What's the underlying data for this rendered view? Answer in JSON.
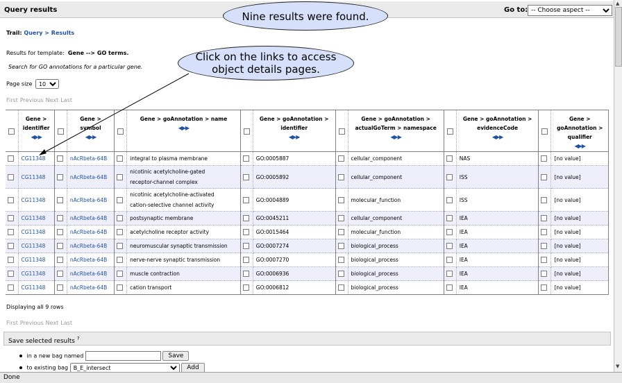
{
  "header": {
    "title": "Query results",
    "goto_label": "Go to:",
    "goto_selected": "-- Choose aspect --"
  },
  "annotations": {
    "bubble1": "Nine results were found.",
    "bubble2_line1": "Click on the links to access",
    "bubble2_line2": "object details pages."
  },
  "trail": {
    "label": "Trail:",
    "crumb1": "Query",
    "sep": ">",
    "crumb2": "Results"
  },
  "template": {
    "prefix": "Results for template:",
    "name": "Gene --> GO terms.",
    "description": "Search for GO annotations for a particular gene."
  },
  "page_size": {
    "label": "Page size",
    "value": "10"
  },
  "pager": {
    "first": "First",
    "previous": "Previous",
    "next": "Next",
    "last": "Last"
  },
  "columns": [
    {
      "line1": "Gene >",
      "line2": "identifier"
    },
    {
      "line1": "Gene >",
      "line2": "symbol"
    },
    {
      "line1": "Gene > goAnnotation > name",
      "line2": ""
    },
    {
      "line1": "Gene > goAnnotation >",
      "line2": "identifier"
    },
    {
      "line1": "Gene > goAnnotation >",
      "line2": "actualGoTerm > namespace"
    },
    {
      "line1": "Gene > goAnnotation >",
      "line2": "evidenceCode"
    },
    {
      "line1": "Gene >",
      "line2": "goAnnotation >",
      "line3": "qualifier"
    }
  ],
  "sort_glyphs": "◀▶▶",
  "rows": [
    {
      "id": "CG11348",
      "symbol": "nAcRbeta-64B",
      "name1": "integral to plasma membrane",
      "name2": "",
      "go": "GO:0005887",
      "ns": "cellular_component",
      "ev": "NAS",
      "qual": "[no value]"
    },
    {
      "id": "CG11348",
      "symbol": "nAcRbeta-64B",
      "name1": "nicotinic acetylcholine-gated",
      "name2": "receptor-channel complex",
      "go": "GO:0005892",
      "ns": "cellular_component",
      "ev": "ISS",
      "qual": "[no value]"
    },
    {
      "id": "CG11348",
      "symbol": "nAcRbeta-64B",
      "name1": "nicotinic acetylcholine-activated",
      "name2": "cation-selective channel activity",
      "go": "GO:0004889",
      "ns": "molecular_function",
      "ev": "ISS",
      "qual": "[no value]"
    },
    {
      "id": "CG11348",
      "symbol": "nAcRbeta-64B",
      "name1": "postsynaptic membrane",
      "name2": "",
      "go": "GO:0045211",
      "ns": "cellular_component",
      "ev": "IEA",
      "qual": "[no value]"
    },
    {
      "id": "CG11348",
      "symbol": "nAcRbeta-64B",
      "name1": "acetylcholine receptor activity",
      "name2": "",
      "go": "GO:0015464",
      "ns": "molecular_function",
      "ev": "IEA",
      "qual": "[no value]"
    },
    {
      "id": "CG11348",
      "symbol": "nAcRbeta-64B",
      "name1": "neuromuscular synaptic transmission",
      "name2": "",
      "go": "GO:0007274",
      "ns": "biological_process",
      "ev": "IEA",
      "qual": "[no value]"
    },
    {
      "id": "CG11348",
      "symbol": "nAcRbeta-64B",
      "name1": "nerve-nerve synaptic transmission",
      "name2": "",
      "go": "GO:0007270",
      "ns": "biological_process",
      "ev": "IEA",
      "qual": "[no value]"
    },
    {
      "id": "CG11348",
      "symbol": "nAcRbeta-64B",
      "name1": "muscle contraction",
      "name2": "",
      "go": "GO:0006936",
      "ns": "biological_process",
      "ev": "IEA",
      "qual": "[no value]"
    },
    {
      "id": "CG11348",
      "symbol": "nAcRbeta-64B",
      "name1": "cation transport",
      "name2": "",
      "go": "GO:0006812",
      "ns": "biological_process",
      "ev": "IEA",
      "qual": "[no value]"
    }
  ],
  "displaying": "Displaying all 9 rows",
  "save": {
    "title": "Save selected results",
    "help": "?",
    "new_bag_label": "in a new bag named",
    "save_button": "Save",
    "existing_bag_label": "to existing bag",
    "existing_bag_value": "B_E_intersect",
    "add_button": "Add"
  },
  "status": "Done"
}
